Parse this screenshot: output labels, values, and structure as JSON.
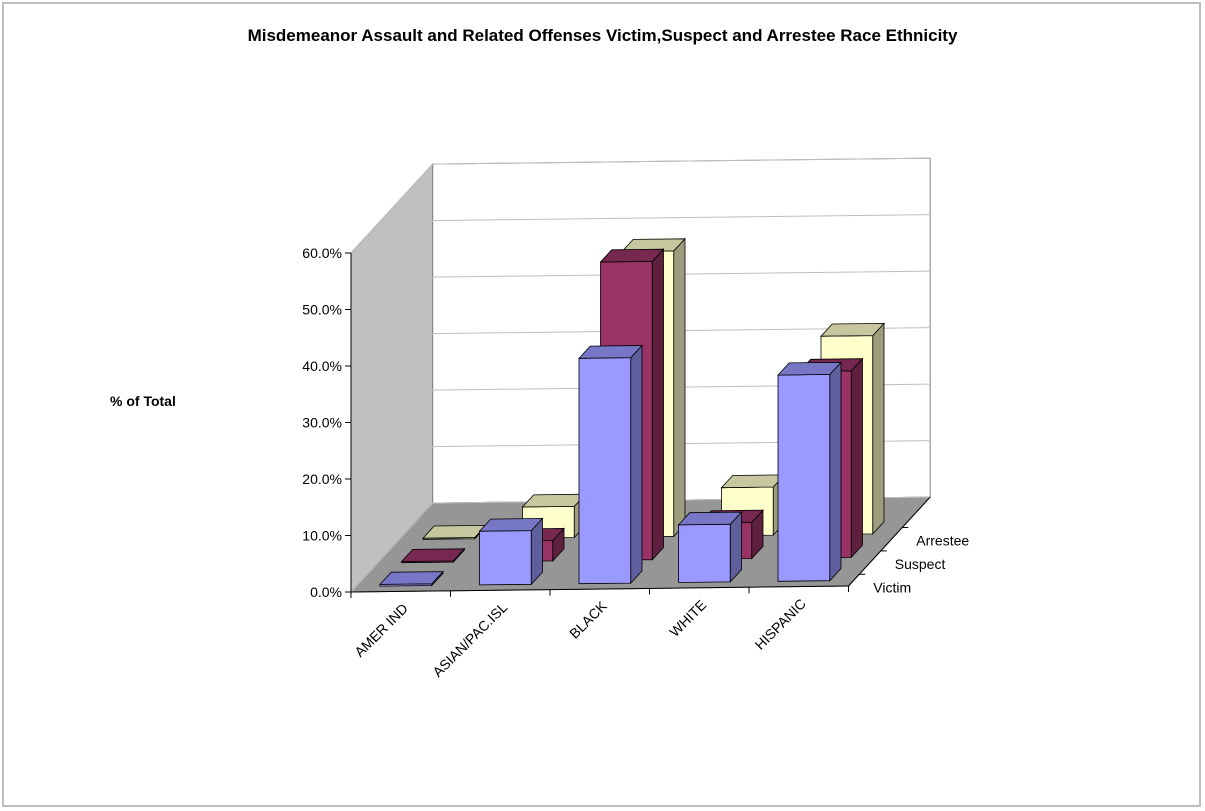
{
  "chart_data": {
    "type": "bar",
    "title": "Misdemeanor Assault and Related Offenses Victim,Suspect and Arrestee Race Ethnicity",
    "ylabel": "% of Total",
    "xlabel": "",
    "categories": [
      "AMER IND",
      "ASIAN/PAC.ISL",
      "BLACK",
      "WHITE",
      "HISPANIC"
    ],
    "series": [
      {
        "name": "Victim",
        "values": [
          0.3,
          9.5,
          39.9,
          10.2,
          36.5
        ],
        "color": "#9999ff"
      },
      {
        "name": "Suspect",
        "values": [
          0.2,
          3.6,
          52.8,
          6.4,
          33.0
        ],
        "color": "#993366"
      },
      {
        "name": "Arrestee",
        "values": [
          0.2,
          5.5,
          50.5,
          8.5,
          35.1
        ],
        "color": "#ffffcc"
      }
    ],
    "ylim": [
      0,
      60
    ],
    "yticks": [
      "0.0%",
      "10.0%",
      "20.0%",
      "30.0%",
      "40.0%",
      "50.0%",
      "60.0%"
    ],
    "grid": true,
    "projection": "3d"
  },
  "colors": {
    "walls": "#c0c0c0",
    "floor": "#969696",
    "frame": "#bdbdbd"
  }
}
